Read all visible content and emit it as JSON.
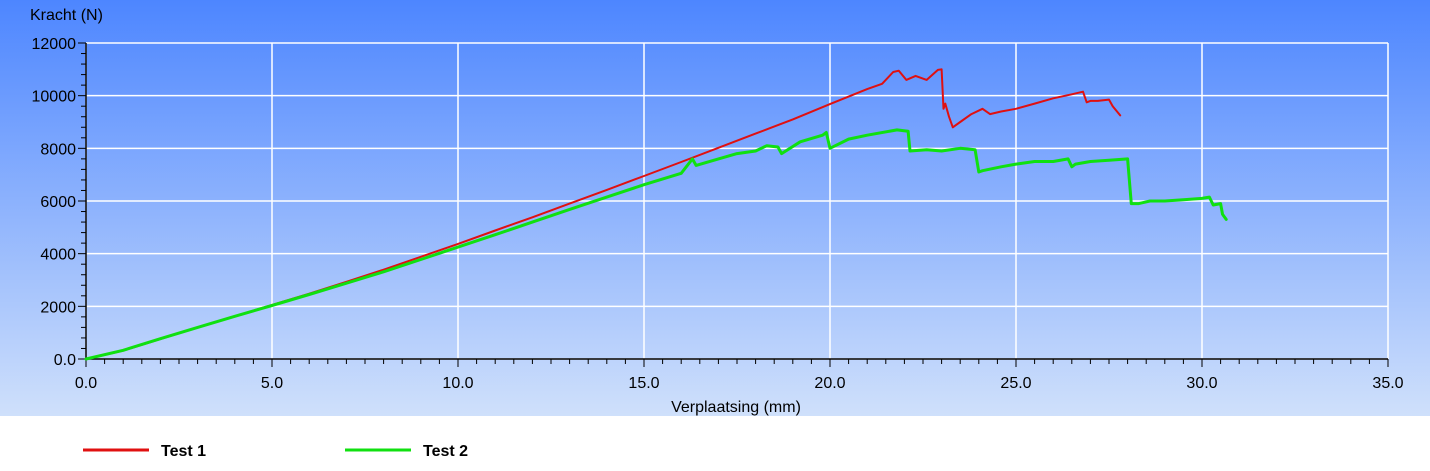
{
  "chart_data": {
    "type": "line",
    "ylabel": "Kracht (N)",
    "xlabel": "Verplaatsing (mm)",
    "xlim": [
      0,
      35
    ],
    "ylim": [
      0,
      12000
    ],
    "xticks": [
      0,
      5,
      10,
      15,
      20,
      25,
      30,
      35
    ],
    "xtick_labels": [
      "0.0",
      "5.0",
      "10.0",
      "15.0",
      "20.0",
      "25.0",
      "30.0",
      "35.0"
    ],
    "yticks": [
      0,
      2000,
      4000,
      6000,
      8000,
      10000,
      12000
    ],
    "ytick_labels": [
      "0.0",
      "2000",
      "4000",
      "6000",
      "8000",
      "10000",
      "12000"
    ],
    "grid": true,
    "legend_position": "bottom-left",
    "series": [
      {
        "name": "Test 1",
        "color": "#e01010",
        "x": [
          0,
          1,
          2,
          3,
          4,
          5,
          6,
          7,
          8,
          9,
          10,
          11,
          12,
          13,
          14,
          15,
          16,
          17,
          18,
          19,
          20,
          21,
          21.4,
          21.7,
          21.85,
          22.05,
          22.3,
          22.6,
          22.9,
          23.0,
          23.05,
          23.1,
          23.2,
          23.3,
          23.5,
          23.8,
          24.1,
          24.3,
          24.6,
          25.0,
          25.5,
          26.0,
          26.5,
          26.8,
          26.9,
          27.0,
          27.2,
          27.5,
          27.6,
          27.8
        ],
        "y": [
          0,
          320,
          760,
          1200,
          1620,
          2050,
          2480,
          2930,
          3390,
          3880,
          4370,
          4880,
          5380,
          5900,
          6420,
          6950,
          7480,
          8020,
          8560,
          9100,
          9680,
          10250,
          10450,
          10900,
          10950,
          10600,
          10750,
          10600,
          10980,
          11000,
          9500,
          9700,
          9200,
          8800,
          9000,
          9300,
          9500,
          9300,
          9400,
          9500,
          9700,
          9900,
          10050,
          10150,
          9750,
          9800,
          9800,
          9850,
          9600,
          9250
        ],
        "data_labels": []
      },
      {
        "name": "Test 2",
        "color": "#10e010",
        "x": [
          0,
          1,
          2,
          3,
          4,
          5,
          6,
          7,
          8,
          9,
          10,
          11,
          12,
          13,
          14,
          15,
          16,
          16.3,
          16.4,
          17,
          17.5,
          18.0,
          18.3,
          18.6,
          18.7,
          19.2,
          19.8,
          19.9,
          20.0,
          20.5,
          21.0,
          21.8,
          22.1,
          22.15,
          22.6,
          23.0,
          23.5,
          23.9,
          24.0,
          24.1,
          24.6,
          25.0,
          25.5,
          26.0,
          26.4,
          26.5,
          26.6,
          27.0,
          27.5,
          28.0,
          28.1,
          28.3,
          28.6,
          29.0,
          29.5,
          30.0,
          30.2,
          30.3,
          30.5,
          30.55,
          30.6,
          30.65
        ],
        "y": [
          0,
          330,
          770,
          1200,
          1620,
          2030,
          2450,
          2880,
          3310,
          3780,
          4250,
          4720,
          5200,
          5680,
          6150,
          6620,
          7050,
          7600,
          7350,
          7600,
          7800,
          7900,
          8100,
          8050,
          7800,
          8250,
          8500,
          8600,
          8000,
          8350,
          8500,
          8700,
          8650,
          7900,
          7950,
          7900,
          8000,
          7950,
          7100,
          7150,
          7300,
          7400,
          7500,
          7500,
          7600,
          7300,
          7400,
          7500,
          7550,
          7600,
          5900,
          5900,
          6000,
          6000,
          6050,
          6100,
          6150,
          5850,
          5900,
          5500,
          5400,
          5300
        ],
        "data_labels": []
      }
    ],
    "legend": [
      {
        "name": "Test 1",
        "color": "#e01010"
      },
      {
        "name": "Test 2",
        "color": "#10e010"
      }
    ]
  }
}
